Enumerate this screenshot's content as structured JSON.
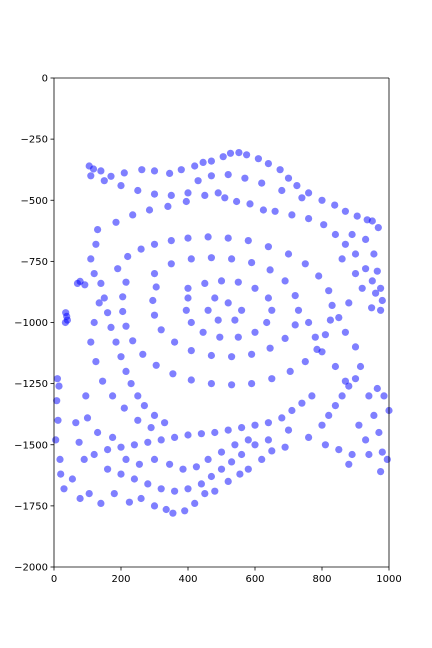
{
  "chart_data": {
    "type": "scatter",
    "title": "",
    "xlabel": "",
    "ylabel": "",
    "xlim": [
      0,
      1000
    ],
    "ylim": [
      -2000,
      0
    ],
    "grid": false,
    "x_ticks": [
      "0",
      "200",
      "400",
      "600",
      "800",
      "1000"
    ],
    "y_ticks": [
      "0",
      "−250",
      "−500",
      "−750",
      "−1000",
      "−1250",
      "−1500",
      "−1750",
      "−2000"
    ],
    "marker_color": "#0000ff",
    "marker_alpha": 0.5,
    "series": [
      {
        "values": [
          [
            105,
            -360
          ],
          [
            118,
            -372
          ],
          [
            140,
            -380
          ],
          [
            170,
            -402
          ],
          [
            210,
            -388
          ],
          [
            262,
            -375
          ],
          [
            300,
            -380
          ],
          [
            345,
            -390
          ],
          [
            380,
            -375
          ],
          [
            420,
            -360
          ],
          [
            445,
            -345
          ],
          [
            470,
            -340
          ],
          [
            505,
            -322
          ],
          [
            527,
            -308
          ],
          [
            552,
            -305
          ],
          [
            575,
            -314
          ],
          [
            610,
            -330
          ],
          [
            640,
            -350
          ],
          [
            675,
            -375
          ],
          [
            700,
            -410
          ],
          [
            725,
            -440
          ],
          [
            760,
            -470
          ],
          [
            800,
            -500
          ],
          [
            838,
            -520
          ],
          [
            870,
            -545
          ],
          [
            905,
            -565
          ],
          [
            935,
            -580
          ],
          [
            950,
            -585
          ],
          [
            968,
            -612
          ],
          [
            890,
            -640
          ],
          [
            930,
            -660
          ],
          [
            955,
            -720
          ],
          [
            965,
            -790
          ],
          [
            975,
            -860
          ],
          [
            980,
            -910
          ],
          [
            975,
            -950
          ],
          [
            965,
            -1270
          ],
          [
            985,
            -1300
          ],
          [
            1000,
            -1360
          ],
          [
            970,
            -1450
          ],
          [
            980,
            -1530
          ],
          [
            995,
            -1560
          ],
          [
            975,
            -1610
          ],
          [
            700,
            -1440
          ],
          [
            760,
            -1470
          ],
          [
            810,
            -1500
          ],
          [
            850,
            -1520
          ],
          [
            890,
            -1540
          ],
          [
            35,
            -960
          ],
          [
            38,
            -975
          ],
          [
            40,
            -990
          ],
          [
            34,
            -1000
          ],
          [
            10,
            -1230
          ],
          [
            15,
            -1260
          ],
          [
            8,
            -1320
          ],
          [
            12,
            -1400
          ],
          [
            5,
            -1480
          ],
          [
            18,
            -1560
          ],
          [
            20,
            -1620
          ],
          [
            30,
            -1680
          ],
          [
            55,
            -1640
          ],
          [
            78,
            -1720
          ],
          [
            105,
            -1700
          ],
          [
            140,
            -1740
          ],
          [
            180,
            -1700
          ],
          [
            225,
            -1735
          ],
          [
            260,
            -1720
          ],
          [
            300,
            -1750
          ],
          [
            335,
            -1765
          ],
          [
            355,
            -1780
          ],
          [
            390,
            -1770
          ],
          [
            420,
            -1740
          ],
          [
            450,
            -1700
          ],
          [
            480,
            -1690
          ],
          [
            520,
            -1650
          ],
          [
            555,
            -1620
          ],
          [
            580,
            -1600
          ],
          [
            620,
            -1560
          ],
          [
            650,
            -1525
          ],
          [
            690,
            -1510
          ],
          [
            95,
            -1300
          ],
          [
            100,
            -1390
          ],
          [
            65,
            -1410
          ],
          [
            75,
            -1490
          ],
          [
            70,
            -840
          ],
          [
            78,
            -832
          ],
          [
            92,
            -846
          ],
          [
            130,
            -620
          ],
          [
            185,
            -590
          ],
          [
            235,
            -560
          ],
          [
            285,
            -540
          ],
          [
            340,
            -525
          ],
          [
            395,
            -505
          ],
          [
            450,
            -480
          ],
          [
            490,
            -470
          ],
          [
            510,
            -490
          ],
          [
            545,
            -505
          ],
          [
            585,
            -515
          ],
          [
            625,
            -540
          ],
          [
            660,
            -545
          ],
          [
            710,
            -560
          ],
          [
            760,
            -575
          ],
          [
            805,
            -600
          ],
          [
            840,
            -640
          ],
          [
            870,
            -680
          ],
          [
            900,
            -720
          ],
          [
            930,
            -780
          ],
          [
            950,
            -830
          ],
          [
            960,
            -880
          ],
          [
            948,
            -940
          ],
          [
            915,
            -1180
          ],
          [
            900,
            -1230
          ],
          [
            880,
            -1260
          ],
          [
            860,
            -1300
          ],
          [
            840,
            -1340
          ],
          [
            820,
            -1380
          ],
          [
            800,
            -1420
          ],
          [
            770,
            -1300
          ],
          [
            740,
            -1330
          ],
          [
            710,
            -1360
          ],
          [
            680,
            -1390
          ],
          [
            640,
            -1410
          ],
          [
            600,
            -1420
          ],
          [
            560,
            -1430
          ],
          [
            520,
            -1440
          ],
          [
            480,
            -1450
          ],
          [
            440,
            -1455
          ],
          [
            400,
            -1460
          ],
          [
            360,
            -1470
          ],
          [
            320,
            -1480
          ],
          [
            280,
            -1490
          ],
          [
            240,
            -1500
          ],
          [
            200,
            -1510
          ],
          [
            160,
            -1520
          ],
          [
            120,
            -1540
          ],
          [
            90,
            -1560
          ],
          [
            140,
            -840
          ],
          [
            150,
            -900
          ],
          [
            160,
            -960
          ],
          [
            170,
            -1020
          ],
          [
            185,
            -1080
          ],
          [
            200,
            -1140
          ],
          [
            215,
            -1200
          ],
          [
            230,
            -1250
          ],
          [
            250,
            -1300
          ],
          [
            270,
            -1340
          ],
          [
            300,
            -1380
          ],
          [
            330,
            -1410
          ],
          [
            190,
            -780
          ],
          [
            220,
            -730
          ],
          [
            260,
            -700
          ],
          [
            300,
            -680
          ],
          [
            350,
            -665
          ],
          [
            400,
            -655
          ],
          [
            460,
            -650
          ],
          [
            520,
            -655
          ],
          [
            580,
            -665
          ],
          [
            640,
            -690
          ],
          [
            700,
            -720
          ],
          [
            750,
            -760
          ],
          [
            790,
            -810
          ],
          [
            820,
            -870
          ],
          [
            830,
            -930
          ],
          [
            825,
            -990
          ],
          [
            810,
            -1050
          ],
          [
            785,
            -1110
          ],
          [
            750,
            -1160
          ],
          [
            705,
            -1200
          ],
          [
            650,
            -1230
          ],
          [
            590,
            -1250
          ],
          [
            530,
            -1255
          ],
          [
            470,
            -1250
          ],
          [
            410,
            -1235
          ],
          [
            355,
            -1210
          ],
          [
            305,
            -1175
          ],
          [
            265,
            -1130
          ],
          [
            235,
            -1075
          ],
          [
            215,
            -1015
          ],
          [
            205,
            -955
          ],
          [
            205,
            -895
          ],
          [
            215,
            -835
          ],
          [
            300,
            -800
          ],
          [
            350,
            -760
          ],
          [
            410,
            -740
          ],
          [
            470,
            -735
          ],
          [
            530,
            -740
          ],
          [
            590,
            -755
          ],
          [
            645,
            -785
          ],
          [
            690,
            -830
          ],
          [
            720,
            -890
          ],
          [
            730,
            -950
          ],
          [
            720,
            -1010
          ],
          [
            690,
            -1065
          ],
          [
            645,
            -1105
          ],
          [
            590,
            -1130
          ],
          [
            530,
            -1140
          ],
          [
            470,
            -1135
          ],
          [
            410,
            -1115
          ],
          [
            360,
            -1080
          ],
          [
            320,
            -1030
          ],
          [
            300,
            -970
          ],
          [
            295,
            -910
          ],
          [
            305,
            -855
          ],
          [
            400,
            -860
          ],
          [
            450,
            -840
          ],
          [
            500,
            -830
          ],
          [
            550,
            -835
          ],
          [
            600,
            -860
          ],
          [
            640,
            -900
          ],
          [
            650,
            -950
          ],
          [
            635,
            -1000
          ],
          [
            600,
            -1040
          ],
          [
            550,
            -1060
          ],
          [
            495,
            -1060
          ],
          [
            445,
            -1040
          ],
          [
            410,
            -1000
          ],
          [
            395,
            -950
          ],
          [
            400,
            -900
          ],
          [
            480,
            -900
          ],
          [
            520,
            -920
          ],
          [
            560,
            -950
          ],
          [
            540,
            -990
          ],
          [
            490,
            -990
          ],
          [
            460,
            -950
          ],
          [
            110,
            -400
          ],
          [
            150,
            -420
          ],
          [
            200,
            -440
          ],
          [
            250,
            -460
          ],
          [
            300,
            -475
          ],
          [
            350,
            -480
          ],
          [
            400,
            -470
          ],
          [
            430,
            -420
          ],
          [
            470,
            -400
          ],
          [
            520,
            -395
          ],
          [
            570,
            -410
          ],
          [
            620,
            -430
          ],
          [
            680,
            -460
          ],
          [
            740,
            -490
          ],
          [
            125,
            -680
          ],
          [
            110,
            -740
          ],
          [
            120,
            -800
          ],
          [
            135,
            -920
          ],
          [
            120,
            -1000
          ],
          [
            110,
            -1080
          ],
          [
            125,
            -1160
          ],
          [
            145,
            -1240
          ],
          [
            175,
            -1300
          ],
          [
            210,
            -1350
          ],
          [
            250,
            -1400
          ],
          [
            290,
            -1430
          ],
          [
            160,
            -1600
          ],
          [
            200,
            -1620
          ],
          [
            240,
            -1640
          ],
          [
            280,
            -1660
          ],
          [
            320,
            -1680
          ],
          [
            360,
            -1690
          ],
          [
            400,
            -1680
          ],
          [
            440,
            -1660
          ],
          [
            470,
            -1630
          ],
          [
            500,
            -1600
          ],
          [
            530,
            -1570
          ],
          [
            560,
            -1540
          ],
          [
            600,
            -1500
          ],
          [
            640,
            -1480
          ],
          [
            130,
            -1450
          ],
          [
            175,
            -1470
          ],
          [
            215,
            -1560
          ],
          [
            255,
            -1580
          ],
          [
            300,
            -1560
          ],
          [
            345,
            -1580
          ],
          [
            385,
            -1600
          ],
          [
            425,
            -1590
          ],
          [
            460,
            -1560
          ],
          [
            500,
            -1530
          ],
          [
            540,
            -1500
          ],
          [
            580,
            -1480
          ],
          [
            860,
            -740
          ],
          [
            900,
            -800
          ],
          [
            920,
            -860
          ],
          [
            880,
            -920
          ],
          [
            850,
            -980
          ],
          [
            870,
            -1040
          ],
          [
            900,
            -1100
          ],
          [
            760,
            -1000
          ],
          [
            780,
            -1060
          ],
          [
            800,
            -1120
          ],
          [
            840,
            -1180
          ],
          [
            870,
            -1240
          ],
          [
            940,
            -1300
          ],
          [
            955,
            -1380
          ],
          [
            910,
            -1420
          ],
          [
            930,
            -1480
          ],
          [
            940,
            -1540
          ],
          [
            880,
            -1580
          ]
        ]
      }
    ]
  }
}
